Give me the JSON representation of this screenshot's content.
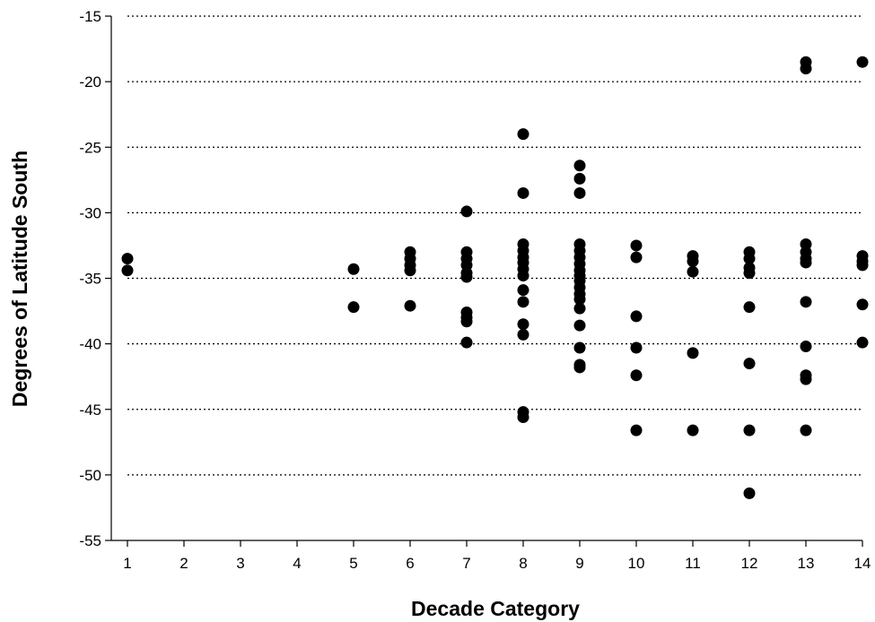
{
  "chart_data": {
    "type": "scatter",
    "title": "",
    "xlabel": "Decade Category",
    "ylabel": "Degrees of Latitude South",
    "xlim": [
      1,
      14
    ],
    "ylim": [
      -55,
      -15
    ],
    "x_ticks": [
      1,
      2,
      3,
      4,
      5,
      6,
      7,
      8,
      9,
      10,
      11,
      12,
      13,
      14
    ],
    "y_ticks": [
      -15,
      -20,
      -25,
      -30,
      -35,
      -40,
      -45,
      -50,
      -55
    ],
    "gridlines": {
      "axis": "y",
      "style": "dotted",
      "values": [
        -15,
        -20,
        -25,
        -30,
        -35,
        -40,
        -45,
        -50
      ]
    },
    "marker_color": "#000000",
    "series": [
      {
        "points": [
          [
            1,
            -33.5
          ],
          [
            1,
            -34.4
          ],
          [
            5,
            -34.3
          ],
          [
            5,
            -37.2
          ],
          [
            6,
            -33.0
          ],
          [
            6,
            -33.5
          ],
          [
            6,
            -34.0
          ],
          [
            6,
            -34.4
          ],
          [
            6,
            -37.1
          ],
          [
            7,
            -29.9
          ],
          [
            7,
            -33.0
          ],
          [
            7,
            -33.5
          ],
          [
            7,
            -34.0
          ],
          [
            7,
            -34.6
          ],
          [
            7,
            -34.9
          ],
          [
            7,
            -37.6
          ],
          [
            7,
            -38.0
          ],
          [
            7,
            -38.3
          ],
          [
            7,
            -39.9
          ],
          [
            8,
            -24.0
          ],
          [
            8,
            -28.5
          ],
          [
            8,
            -32.4
          ],
          [
            8,
            -32.9
          ],
          [
            8,
            -33.4
          ],
          [
            8,
            -33.8
          ],
          [
            8,
            -34.3
          ],
          [
            8,
            -34.8
          ],
          [
            8,
            -35.9
          ],
          [
            8,
            -36.8
          ],
          [
            8,
            -38.5
          ],
          [
            8,
            -39.3
          ],
          [
            8,
            -45.2
          ],
          [
            8,
            -45.6
          ],
          [
            9,
            -26.4
          ],
          [
            9,
            -27.4
          ],
          [
            9,
            -28.5
          ],
          [
            9,
            -32.4
          ],
          [
            9,
            -32.9
          ],
          [
            9,
            -33.4
          ],
          [
            9,
            -33.9
          ],
          [
            9,
            -34.4
          ],
          [
            9,
            -34.8
          ],
          [
            9,
            -35.2
          ],
          [
            9,
            -35.7
          ],
          [
            9,
            -36.2
          ],
          [
            9,
            -36.6
          ],
          [
            9,
            -37.3
          ],
          [
            9,
            -38.6
          ],
          [
            9,
            -40.3
          ],
          [
            9,
            -41.6
          ],
          [
            9,
            -41.8
          ],
          [
            10,
            -32.5
          ],
          [
            10,
            -33.4
          ],
          [
            10,
            -37.9
          ],
          [
            10,
            -40.3
          ],
          [
            10,
            -42.4
          ],
          [
            10,
            -46.6
          ],
          [
            11,
            -33.3
          ],
          [
            11,
            -33.7
          ],
          [
            11,
            -34.5
          ],
          [
            11,
            -40.7
          ],
          [
            11,
            -46.6
          ],
          [
            12,
            -33.0
          ],
          [
            12,
            -33.5
          ],
          [
            12,
            -34.2
          ],
          [
            12,
            -34.6
          ],
          [
            12,
            -37.2
          ],
          [
            12,
            -41.5
          ],
          [
            12,
            -46.6
          ],
          [
            12,
            -51.4
          ],
          [
            13,
            -18.5
          ],
          [
            13,
            -19.0
          ],
          [
            13,
            -32.4
          ],
          [
            13,
            -33.0
          ],
          [
            13,
            -33.5
          ],
          [
            13,
            -33.8
          ],
          [
            13,
            -36.8
          ],
          [
            13,
            -40.2
          ],
          [
            13,
            -42.4
          ],
          [
            13,
            -42.7
          ],
          [
            13,
            -46.6
          ],
          [
            14,
            -18.5
          ],
          [
            14,
            -33.3
          ],
          [
            14,
            -33.7
          ],
          [
            14,
            -34.0
          ],
          [
            14,
            -37.0
          ],
          [
            14,
            -39.9
          ]
        ]
      }
    ]
  }
}
